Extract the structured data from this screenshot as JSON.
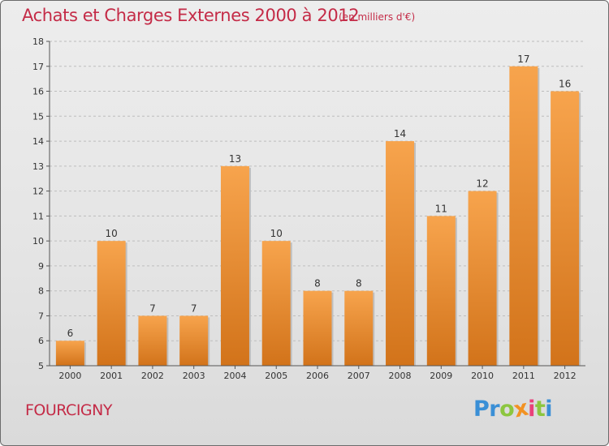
{
  "header": {
    "title": "Achats et Charges Externes 2000 à 2012",
    "unit": "(en milliers d'€)"
  },
  "footer": {
    "commune": "FOURCIGNY",
    "brand_letters": [
      {
        "char": "P",
        "color": "#3a8fd6"
      },
      {
        "char": "r",
        "color": "#3a8fd6"
      },
      {
        "char": "o",
        "color": "#8cc63f"
      },
      {
        "char": "x",
        "color": "#f29222"
      },
      {
        "char": "i",
        "color": "#e9417a"
      },
      {
        "char": "t",
        "color": "#8cc63f"
      },
      {
        "char": "i",
        "color": "#3a8fd6"
      }
    ]
  },
  "colors": {
    "title": "#c42b47",
    "bar_light": "#f7a44d",
    "bar_dark": "#d2731a",
    "grid": "#bdbdbd",
    "axis": "#555555"
  },
  "chart_data": {
    "type": "bar",
    "title": "Achats et Charges Externes 2000 à 2012",
    "subtitle": "(en milliers d'€)",
    "xlabel": "",
    "ylabel": "",
    "categories": [
      "2000",
      "2001",
      "2002",
      "2003",
      "2004",
      "2005",
      "2006",
      "2007",
      "2008",
      "2009",
      "2010",
      "2011",
      "2012"
    ],
    "values": [
      6,
      10,
      7,
      7,
      13,
      10,
      8,
      8,
      14,
      11,
      12,
      17,
      16
    ],
    "ylim": [
      5,
      18
    ],
    "yticks": [
      5,
      6,
      7,
      8,
      9,
      10,
      11,
      12,
      13,
      14,
      15,
      16,
      17,
      18
    ],
    "grid": "horizontal dashed",
    "legend": "none",
    "data_labels": true
  }
}
